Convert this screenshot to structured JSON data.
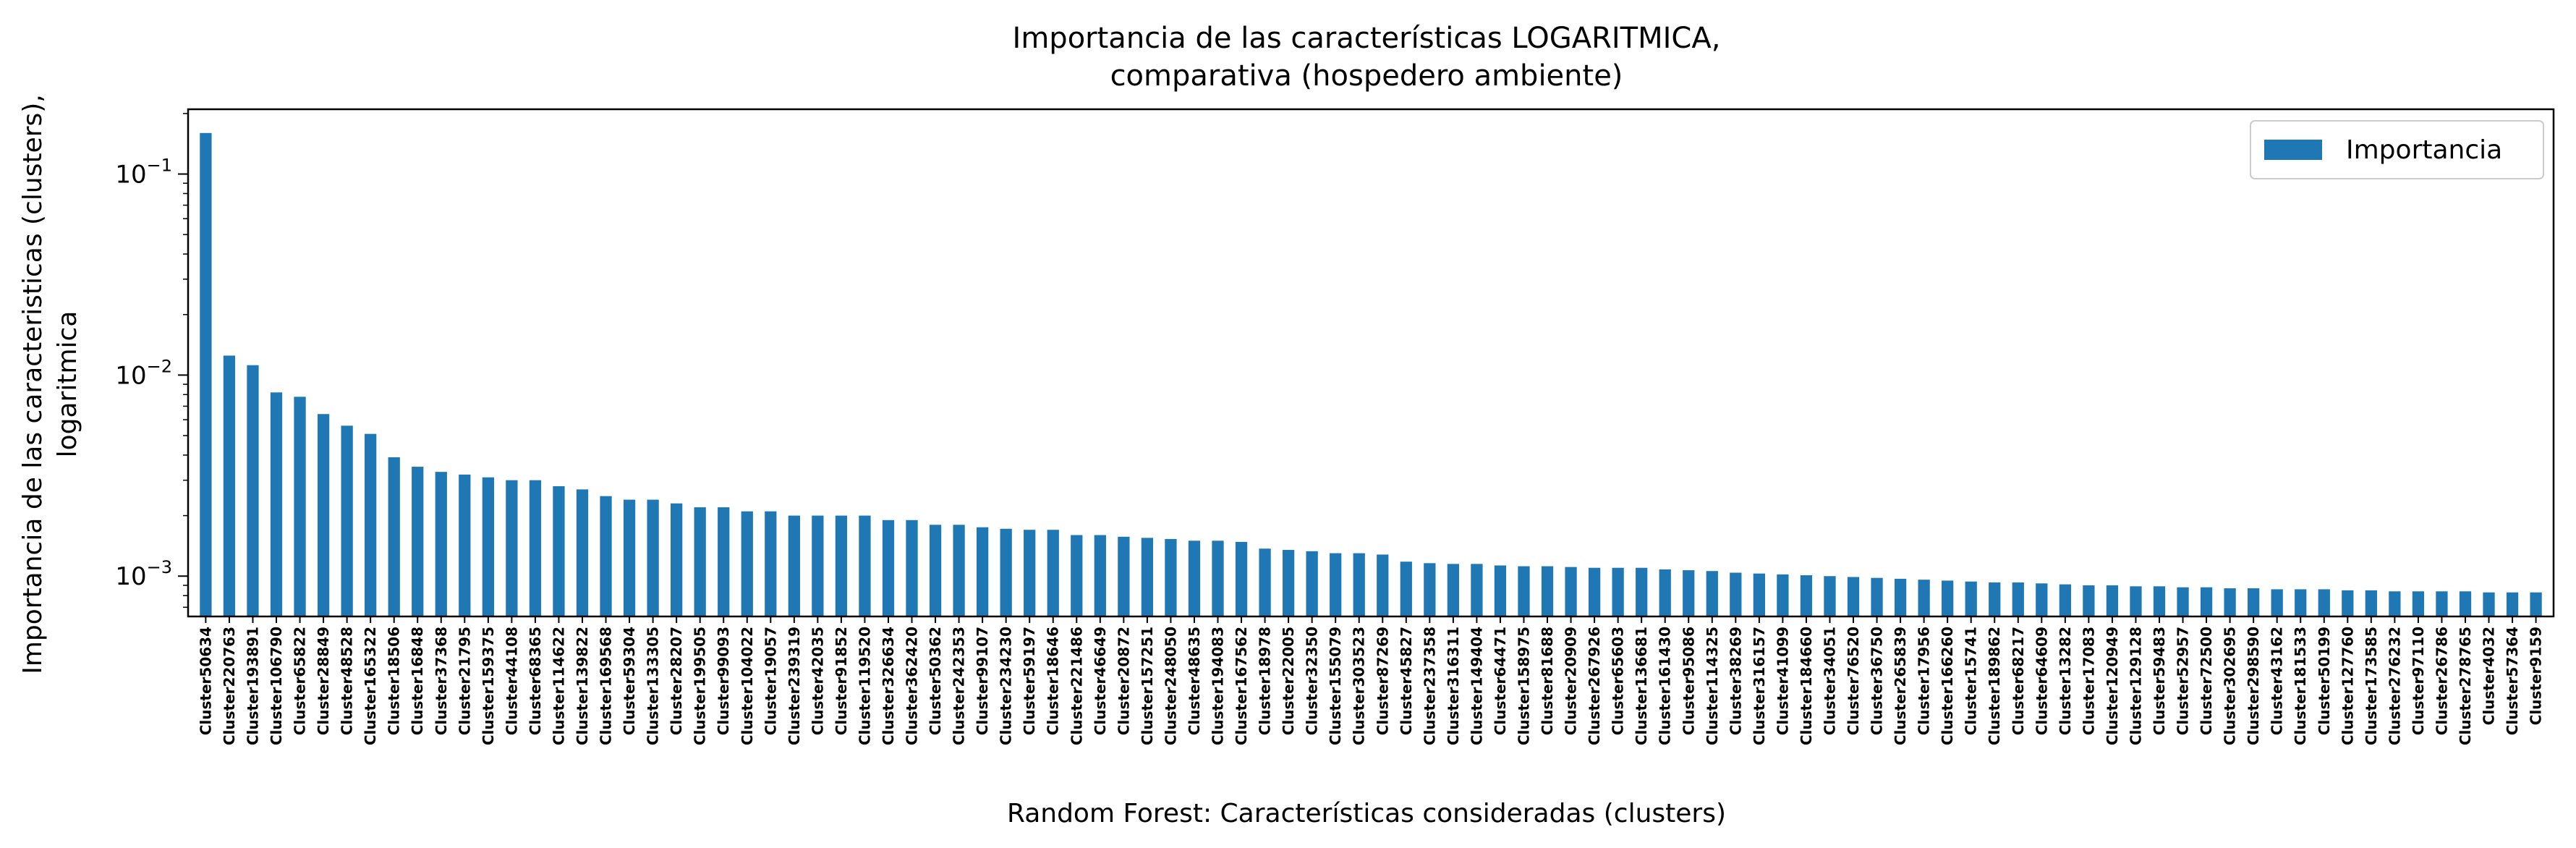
{
  "chart_data": {
    "type": "bar",
    "title": "Importancia de las características LOGARITMICA,",
    "subtitle": "comparativa (hospedero ambiente)",
    "xlabel": "Random Forest: Características consideradas (clusters)",
    "ylabel_line1": "Importancia de las caracteristicas (clusters),",
    "ylabel_line2": "logaritmica",
    "yscale": "log",
    "ylim": [
      0.00063,
      0.21
    ],
    "yticks": [
      {
        "value": 0.001,
        "base": "10",
        "exp": "−3"
      },
      {
        "value": 0.01,
        "base": "10",
        "exp": "−2"
      },
      {
        "value": 0.1,
        "base": "10",
        "exp": "−1"
      }
    ],
    "legend": {
      "position": "top-right",
      "label": "Importancia"
    },
    "grid": false,
    "color": "#1f77b4",
    "categories": [
      "Cluster50634",
      "Cluster220763",
      "Cluster193891",
      "Cluster106790",
      "Cluster65822",
      "Cluster28849",
      "Cluster48528",
      "Cluster165322",
      "Cluster18506",
      "Cluster16848",
      "Cluster37368",
      "Cluster21795",
      "Cluster159375",
      "Cluster44108",
      "Cluster68365",
      "Cluster114622",
      "Cluster139822",
      "Cluster169568",
      "Cluster59304",
      "Cluster133305",
      "Cluster28207",
      "Cluster199505",
      "Cluster99093",
      "Cluster104022",
      "Cluster19057",
      "Cluster239319",
      "Cluster42035",
      "Cluster91852",
      "Cluster119520",
      "Cluster326634",
      "Cluster362420",
      "Cluster50362",
      "Cluster242353",
      "Cluster99107",
      "Cluster234230",
      "Cluster59197",
      "Cluster18646",
      "Cluster221486",
      "Cluster46649",
      "Cluster20872",
      "Cluster157251",
      "Cluster248050",
      "Cluster48635",
      "Cluster194083",
      "Cluster167562",
      "Cluster18978",
      "Cluster22005",
      "Cluster32350",
      "Cluster155079",
      "Cluster303523",
      "Cluster87269",
      "Cluster45827",
      "Cluster237358",
      "Cluster316311",
      "Cluster149404",
      "Cluster64471",
      "Cluster158975",
      "Cluster81688",
      "Cluster20909",
      "Cluster267926",
      "Cluster65603",
      "Cluster136681",
      "Cluster161430",
      "Cluster95086",
      "Cluster114325",
      "Cluster38269",
      "Cluster316157",
      "Cluster41099",
      "Cluster184660",
      "Cluster34051",
      "Cluster76520",
      "Cluster36750",
      "Cluster265839",
      "Cluster17956",
      "Cluster166260",
      "Cluster15741",
      "Cluster189862",
      "Cluster68217",
      "Cluster64609",
      "Cluster13282",
      "Cluster17083",
      "Cluster120949",
      "Cluster129128",
      "Cluster59483",
      "Cluster52957",
      "Cluster72500",
      "Cluster302695",
      "Cluster298590",
      "Cluster43162",
      "Cluster181533",
      "Cluster50199",
      "Cluster127760",
      "Cluster173585",
      "Cluster276232",
      "Cluster97110",
      "Cluster26786",
      "Cluster278765",
      "Cluster4032",
      "Cluster57364",
      "Cluster9159"
    ],
    "values": [
      0.16,
      0.0125,
      0.0112,
      0.0082,
      0.0078,
      0.0064,
      0.0056,
      0.0051,
      0.0039,
      0.0035,
      0.0033,
      0.0032,
      0.0031,
      0.003,
      0.003,
      0.0028,
      0.0027,
      0.0025,
      0.0024,
      0.0024,
      0.0023,
      0.0022,
      0.0022,
      0.0021,
      0.0021,
      0.002,
      0.002,
      0.002,
      0.002,
      0.0019,
      0.0019,
      0.0018,
      0.0018,
      0.00175,
      0.00172,
      0.0017,
      0.0017,
      0.0016,
      0.0016,
      0.00157,
      0.00155,
      0.00153,
      0.0015,
      0.0015,
      0.00148,
      0.00137,
      0.00135,
      0.00133,
      0.0013,
      0.0013,
      0.00128,
      0.00118,
      0.00116,
      0.00115,
      0.00115,
      0.00113,
      0.00112,
      0.00112,
      0.00111,
      0.0011,
      0.0011,
      0.0011,
      0.00108,
      0.00107,
      0.00106,
      0.00104,
      0.00103,
      0.00102,
      0.00101,
      0.001,
      0.00099,
      0.00098,
      0.00097,
      0.00096,
      0.00095,
      0.00094,
      0.00093,
      0.00093,
      0.00092,
      0.00091,
      0.0009,
      0.0009,
      0.00089,
      0.00089,
      0.00088,
      0.00088,
      0.00087,
      0.00087,
      0.00086,
      0.00086,
      0.00086,
      0.00085,
      0.00085,
      0.00084,
      0.00084,
      0.00084,
      0.00084,
      0.00083,
      0.00083,
      0.00083
    ]
  }
}
